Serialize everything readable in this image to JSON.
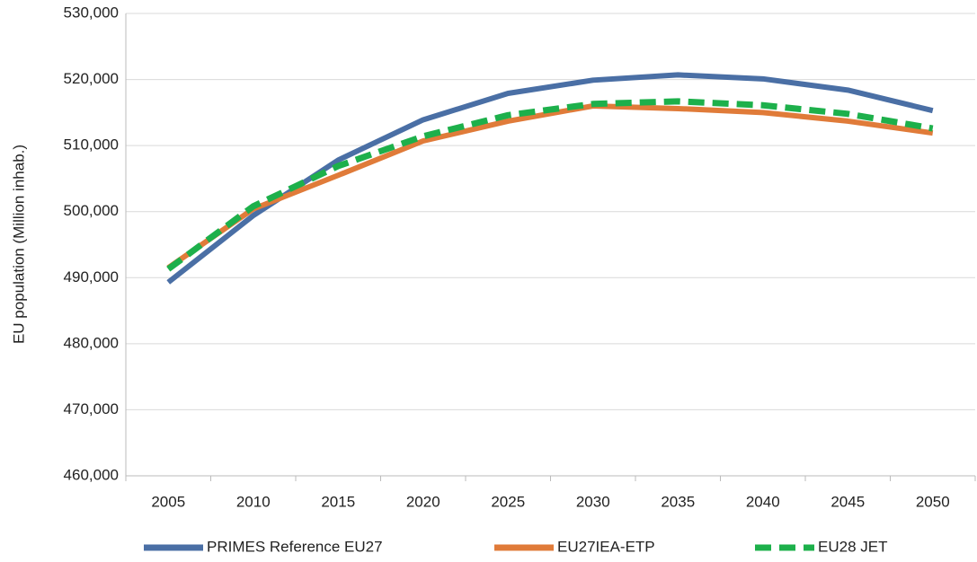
{
  "chart_data": {
    "type": "line",
    "y_label": "EU population (Million inhab.)",
    "categories": [
      "2005",
      "2010",
      "2015",
      "2020",
      "2025",
      "2030",
      "2035",
      "2040",
      "2045",
      "2050"
    ],
    "series": [
      {
        "name": "PRIMES Reference EU27",
        "color": "#4a6fa5",
        "dashed": false,
        "values": [
          489300,
          499400,
          507800,
          513900,
          517900,
          519900,
          520700,
          520100,
          518400,
          515300
        ]
      },
      {
        "name": "EU27IEA-ETP",
        "color": "#e07b39",
        "dashed": false,
        "values": [
          491500,
          500400,
          505500,
          510700,
          513700,
          516000,
          515600,
          515000,
          513700,
          511900
        ]
      },
      {
        "name": "EU28 JET",
        "color": "#1db04b",
        "dashed": true,
        "values": [
          491300,
          500800,
          506900,
          511400,
          514600,
          516300,
          516700,
          516100,
          514800,
          512600
        ]
      }
    ],
    "ylim": [
      460000,
      530000
    ],
    "yticks": [
      {
        "value": 460000,
        "label": "460,000"
      },
      {
        "value": 470000,
        "label": "470,000"
      },
      {
        "value": 480000,
        "label": "480,000"
      },
      {
        "value": 490000,
        "label": "490,000"
      },
      {
        "value": 500000,
        "label": "500,000"
      },
      {
        "value": 510000,
        "label": "510,000"
      },
      {
        "value": 520000,
        "label": "520,000"
      },
      {
        "value": 530000,
        "label": "530,000"
      }
    ],
    "grid": true,
    "legend": "bottom"
  }
}
